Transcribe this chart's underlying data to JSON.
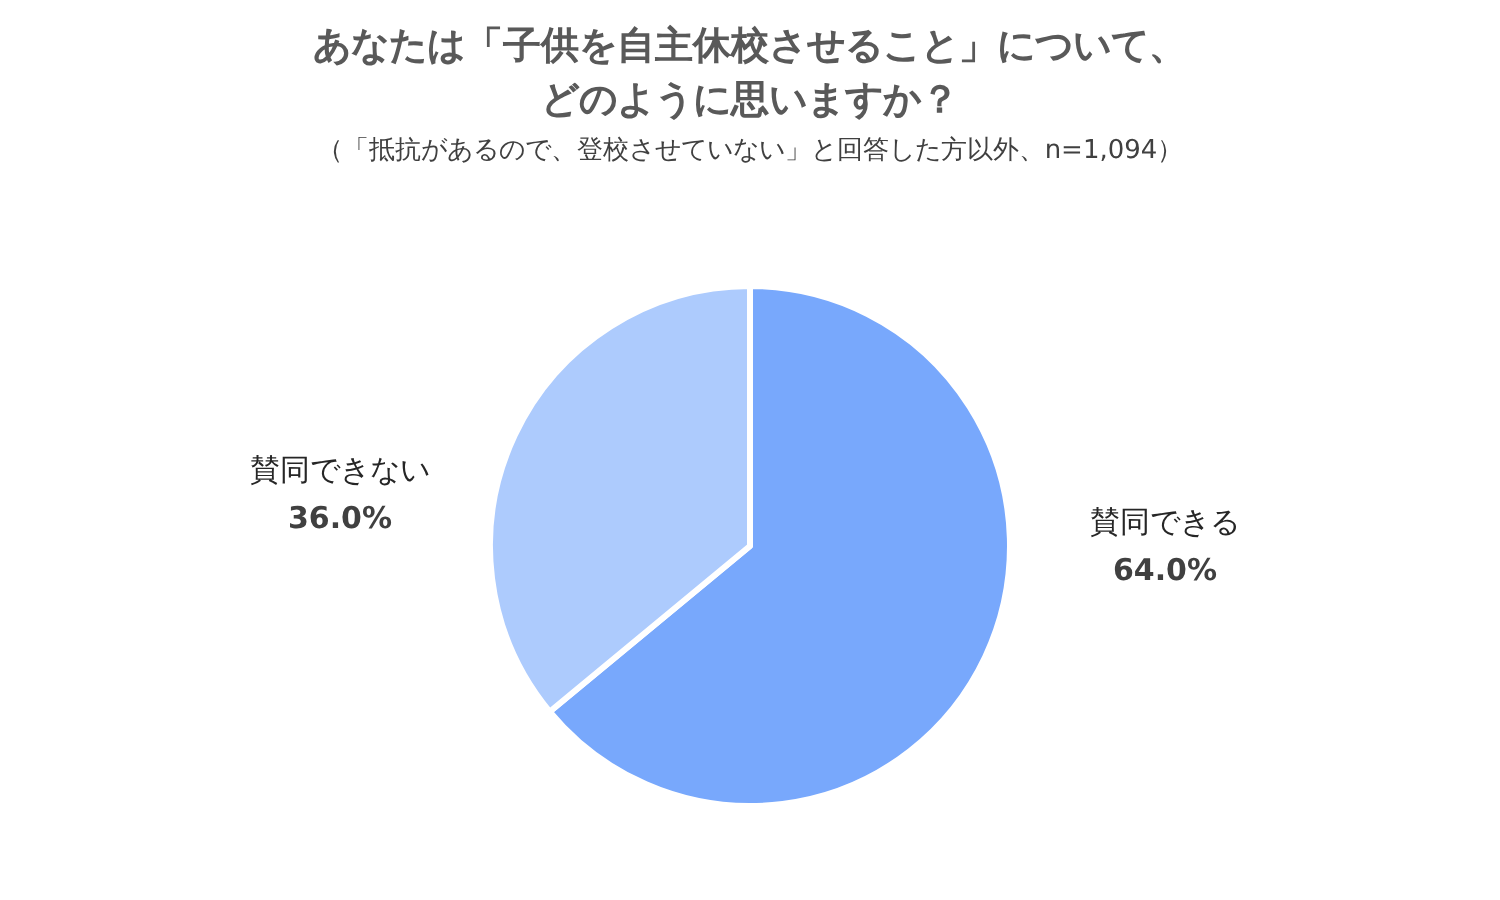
{
  "chart_data": {
    "type": "pie",
    "title": "あなたは「子供を自主休校させること」について、どのように思いますか？",
    "subtitle": "（「抵抗があるので、登校させていない」と回答した方以外、n=1,094）",
    "categories": [
      "賛同できる",
      "賛同できない"
    ],
    "values": [
      64.0,
      36.0
    ],
    "value_labels": [
      "64.0%",
      "36.0%"
    ],
    "colors": [
      "#78a8fc",
      "#adcbfd"
    ]
  }
}
